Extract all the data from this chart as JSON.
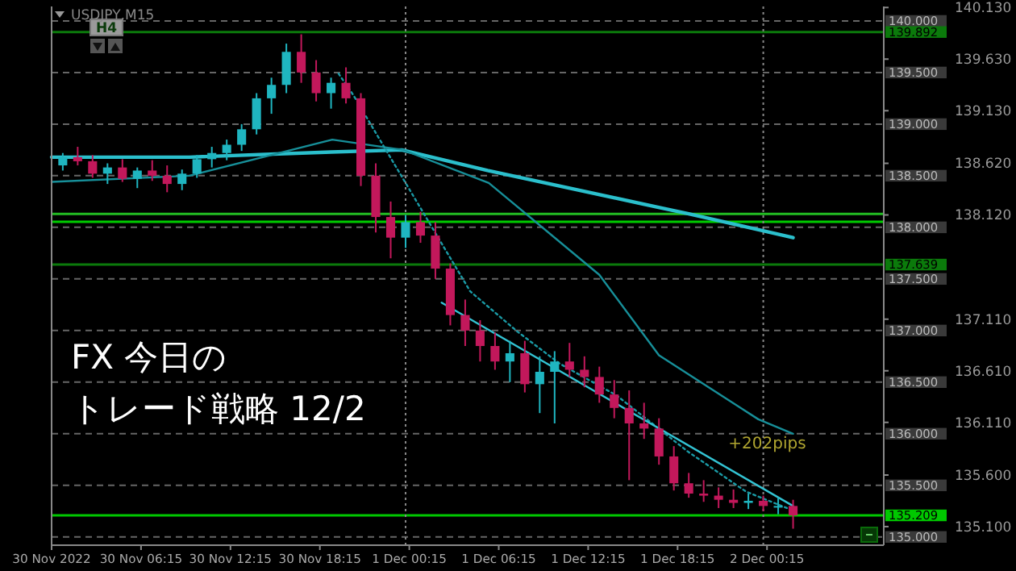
{
  "chart_data": {
    "type": "candlestick",
    "title": "FX 今日のトレード戦略 12/2",
    "subtitle": "USDJPY,M15",
    "x": [
      "2022-11-30T01:00",
      "2022-11-30T02:00",
      "2022-11-30T03:00",
      "2022-11-30T04:00",
      "2022-11-30T05:00",
      "2022-11-30T06:00",
      "2022-11-30T07:00",
      "2022-11-30T08:00",
      "2022-11-30T09:00",
      "2022-11-30T10:00",
      "2022-11-30T11:00",
      "2022-11-30T12:00",
      "2022-11-30T13:00",
      "2022-11-30T14:00",
      "2022-11-30T15:00",
      "2022-11-30T16:00",
      "2022-11-30T17:00",
      "2022-11-30T18:00",
      "2022-11-30T19:00",
      "2022-11-30T20:00",
      "2022-11-30T21:00",
      "2022-11-30T22:00",
      "2022-11-30T23:00",
      "2022-12-01T00:00",
      "2022-12-01T01:00",
      "2022-12-01T02:00",
      "2022-12-01T03:00",
      "2022-12-01T04:00",
      "2022-12-01T05:00",
      "2022-12-01T06:00",
      "2022-12-01T07:00",
      "2022-12-01T08:00",
      "2022-12-01T09:00",
      "2022-12-01T10:00",
      "2022-12-01T11:00",
      "2022-12-01T12:00",
      "2022-12-01T13:00",
      "2022-12-01T14:00",
      "2022-12-01T15:00",
      "2022-12-01T16:00",
      "2022-12-01T17:00",
      "2022-12-01T18:00",
      "2022-12-01T19:00",
      "2022-12-01T20:00",
      "2022-12-01T21:00",
      "2022-12-01T22:00",
      "2022-12-01T23:00",
      "2022-12-02T00:00",
      "2022-12-02T01:00",
      "2022-12-02T02:00"
    ],
    "ohlc": [
      [
        138.6,
        138.72,
        138.55,
        138.68
      ],
      [
        138.68,
        138.78,
        138.6,
        138.64
      ],
      [
        138.64,
        138.7,
        138.48,
        138.52
      ],
      [
        138.52,
        138.62,
        138.42,
        138.58
      ],
      [
        138.58,
        138.66,
        138.44,
        138.47
      ],
      [
        138.47,
        138.58,
        138.38,
        138.55
      ],
      [
        138.55,
        138.65,
        138.45,
        138.5
      ],
      [
        138.5,
        138.6,
        138.34,
        138.42
      ],
      [
        138.42,
        138.56,
        138.36,
        138.52
      ],
      [
        138.52,
        138.7,
        138.48,
        138.66
      ],
      [
        138.66,
        138.78,
        138.58,
        138.72
      ],
      [
        138.72,
        138.85,
        138.65,
        138.8
      ],
      [
        138.8,
        139.0,
        138.74,
        138.95
      ],
      [
        138.95,
        139.3,
        138.9,
        139.25
      ],
      [
        139.25,
        139.45,
        139.1,
        139.38
      ],
      [
        139.38,
        139.78,
        139.3,
        139.7
      ],
      [
        139.7,
        139.87,
        139.4,
        139.5
      ],
      [
        139.5,
        139.62,
        139.22,
        139.3
      ],
      [
        139.3,
        139.45,
        139.15,
        139.4
      ],
      [
        139.4,
        139.55,
        139.2,
        139.25
      ],
      [
        139.25,
        139.3,
        138.4,
        138.5
      ],
      [
        138.5,
        138.62,
        137.95,
        138.1
      ],
      [
        138.1,
        138.25,
        137.7,
        137.9
      ],
      [
        137.9,
        138.12,
        137.8,
        138.05
      ],
      [
        138.05,
        138.15,
        137.85,
        137.92
      ],
      [
        137.92,
        138.05,
        137.5,
        137.6
      ],
      [
        137.6,
        137.65,
        137.05,
        137.15
      ],
      [
        137.15,
        137.3,
        136.85,
        137.0
      ],
      [
        137.0,
        137.1,
        136.7,
        136.85
      ],
      [
        136.85,
        136.98,
        136.62,
        136.7
      ],
      [
        136.7,
        136.9,
        136.5,
        136.78
      ],
      [
        136.78,
        136.9,
        136.4,
        136.48
      ],
      [
        136.48,
        136.75,
        136.2,
        136.6
      ],
      [
        136.6,
        136.8,
        136.1,
        136.7
      ],
      [
        136.7,
        136.88,
        136.55,
        136.62
      ],
      [
        136.62,
        136.75,
        136.45,
        136.55
      ],
      [
        136.55,
        136.65,
        136.3,
        136.38
      ],
      [
        136.38,
        136.52,
        136.15,
        136.25
      ],
      [
        136.25,
        136.42,
        135.55,
        136.1
      ],
      [
        136.1,
        136.3,
        135.95,
        136.05
      ],
      [
        136.05,
        136.15,
        135.7,
        135.78
      ],
      [
        135.78,
        135.88,
        135.45,
        135.52
      ],
      [
        135.52,
        135.62,
        135.38,
        135.42
      ],
      [
        135.42,
        135.55,
        135.34,
        135.4
      ],
      [
        135.4,
        135.48,
        135.28,
        135.36
      ],
      [
        135.36,
        135.46,
        135.28,
        135.33
      ],
      [
        135.33,
        135.42,
        135.27,
        135.35
      ],
      [
        135.35,
        135.4,
        135.25,
        135.3
      ],
      [
        135.3,
        135.38,
        135.22,
        135.3
      ],
      [
        135.3,
        135.36,
        135.08,
        135.209
      ]
    ],
    "series": [
      {
        "type": "line",
        "color": "#2bbfcc",
        "x": [
          "2022-11-30T00:15",
          "2022-11-30T09:30",
          "2022-11-30T19:00",
          "2022-11-30T23:45",
          "2022-12-01T05:30",
          "2022-12-01T19:00",
          "2022-12-02T02:00"
        ],
        "values": [
          138.68,
          138.68,
          138.73,
          138.75,
          138.55,
          138.13,
          137.9
        ]
      },
      {
        "type": "line",
        "color": "#178f99",
        "x": [
          "2022-11-30T00:15",
          "2022-11-30T09:30",
          "2022-11-30T19:05",
          "2022-11-30T23:50",
          "2022-12-01T05:35",
          "2022-12-01T13:00",
          "2022-12-01T17:00",
          "2022-12-01T23:40",
          "2022-12-02T02:00"
        ],
        "values": [
          138.44,
          138.5,
          138.85,
          138.75,
          138.43,
          137.54,
          136.76,
          136.14,
          136.0
        ]
      },
      {
        "type": "line",
        "color": "#1a9aa5",
        "line_style": "dotted",
        "x": [
          "2022-11-30T19:30",
          "2022-11-30T20:30",
          "2022-11-30T23:50",
          "2022-12-01T04:20",
          "2022-12-01T07:30",
          "2022-12-01T10:20",
          "2022-12-01T14:10",
          "2022-12-01T18:55",
          "2022-12-01T22:50",
          "2022-12-02T01:35"
        ],
        "values": [
          139.49,
          139.28,
          138.47,
          137.38,
          136.99,
          136.68,
          136.37,
          135.83,
          135.44,
          135.28
        ]
      },
      {
        "type": "line",
        "color": "#33c3d3",
        "x": [
          "2022-12-01T02:25",
          "2022-12-02T02:00"
        ],
        "values": [
          137.27,
          135.3
        ]
      }
    ],
    "xlim": [
      "2022-11-30T00:15",
      "2022-12-02T08:05"
    ],
    "xticks": [
      {
        "value": "2022-11-30T00:15",
        "label": "30 Nov 2022"
      },
      {
        "value": "2022-11-30T06:15",
        "label": "30 Nov 06:15"
      },
      {
        "value": "2022-11-30T12:15",
        "label": "30 Nov 12:15"
      },
      {
        "value": "2022-11-30T18:15",
        "label": "30 Nov 18:15"
      },
      {
        "value": "2022-12-01T00:15",
        "label": "1 Dec 00:15"
      },
      {
        "value": "2022-12-01T06:15",
        "label": "1 Dec 06:15"
      },
      {
        "value": "2022-12-01T12:15",
        "label": "1 Dec 12:15"
      },
      {
        "value": "2022-12-01T18:15",
        "label": "1 Dec 18:15"
      },
      {
        "value": "2022-12-02T00:15",
        "label": "2 Dec 00:15"
      }
    ],
    "ylim": [
      134.92,
      140.14
    ],
    "yticks": [
      {
        "value": 140.13,
        "label": "140.130"
      },
      {
        "value": 139.63,
        "label": "139.630"
      },
      {
        "value": 139.13,
        "label": "139.130"
      },
      {
        "value": 138.62,
        "label": "138.620"
      },
      {
        "value": 138.12,
        "label": "138.120"
      },
      {
        "value": 137.11,
        "label": "137.110"
      },
      {
        "value": 136.61,
        "label": "136.610"
      },
      {
        "value": 136.11,
        "label": "136.110"
      },
      {
        "value": 135.6,
        "label": "135.600"
      },
      {
        "value": 135.1,
        "label": "135.100"
      }
    ],
    "ref_lines": [
      {
        "axis": "y",
        "value": 140.0,
        "label": "140.000",
        "color": "#666666",
        "line_style": "dashed"
      },
      {
        "axis": "y",
        "value": 139.5,
        "label": "139.500",
        "color": "#666666",
        "line_style": "dashed"
      },
      {
        "axis": "y",
        "value": 139.0,
        "label": "139.000",
        "color": "#666666",
        "line_style": "dashed"
      },
      {
        "axis": "y",
        "value": 138.5,
        "label": "138.500",
        "color": "#666666",
        "line_style": "dashed"
      },
      {
        "axis": "y",
        "value": 138.0,
        "label": "138.000",
        "color": "#666666",
        "line_style": "dashed"
      },
      {
        "axis": "y",
        "value": 137.5,
        "label": "137.500",
        "color": "#666666",
        "line_style": "dashed"
      },
      {
        "axis": "y",
        "value": 137.0,
        "label": "137.000",
        "color": "#666666",
        "line_style": "dashed"
      },
      {
        "axis": "y",
        "value": 136.5,
        "label": "136.500",
        "color": "#666666",
        "line_style": "dashed"
      },
      {
        "axis": "y",
        "value": 136.0,
        "label": "136.000",
        "color": "#666666",
        "line_style": "dashed"
      },
      {
        "axis": "y",
        "value": 135.5,
        "label": "135.500",
        "color": "#666666",
        "line_style": "dashed"
      },
      {
        "axis": "y",
        "value": 135.0,
        "label": "135.000",
        "color": "#666666",
        "line_style": "dashed"
      },
      {
        "axis": "y",
        "value": 139.892,
        "label": "139.892",
        "color": "#0b7a0b",
        "line_style": "solid"
      },
      {
        "axis": "y",
        "value": 138.13,
        "label": null,
        "color": "#22bb22",
        "line_style": "solid"
      },
      {
        "axis": "y",
        "value": 138.053,
        "label": null,
        "color": "#00cc00",
        "line_style": "solid"
      },
      {
        "axis": "y",
        "value": 137.639,
        "label": "137.639",
        "color": "#0b7a0b",
        "line_style": "solid"
      },
      {
        "axis": "y",
        "value": 135.209,
        "label": "135.209",
        "color": "#00c800",
        "line_style": "solid"
      },
      {
        "axis": "x",
        "value": "2022-12-01T00:00",
        "label": null,
        "color": "#888888",
        "line_style": "dotted"
      },
      {
        "axis": "x",
        "value": "2022-12-02T00:00",
        "label": null,
        "color": "#888888",
        "line_style": "dotted"
      }
    ],
    "annotations": [
      "+202pips",
      "H4"
    ]
  }
}
